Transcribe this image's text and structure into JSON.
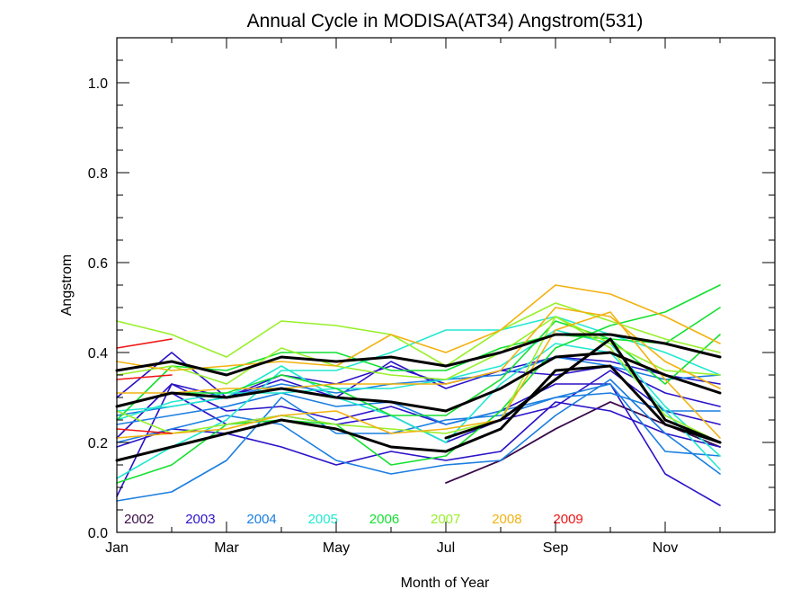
{
  "chart_data": {
    "type": "line",
    "title": "Annual Cycle in MODISA(AT34) Angstrom(531)",
    "xlabel": "Month of Year",
    "ylabel": "Angstrom",
    "xlim": [
      1,
      13
    ],
    "ylim": [
      0,
      1.1
    ],
    "x_ticks": [
      {
        "value": 1,
        "label": "Jan"
      },
      {
        "value": 3,
        "label": "Mar"
      },
      {
        "value": 5,
        "label": "May"
      },
      {
        "value": 7,
        "label": "Jul"
      },
      {
        "value": 9,
        "label": "Sep"
      },
      {
        "value": 11,
        "label": "Nov"
      }
    ],
    "y_ticks": [
      {
        "value": 0.0,
        "label": "0.0"
      },
      {
        "value": 0.2,
        "label": "0.2"
      },
      {
        "value": 0.4,
        "label": "0.4"
      },
      {
        "value": 0.6,
        "label": "0.6"
      },
      {
        "value": 0.8,
        "label": "0.8"
      },
      {
        "value": 1.0,
        "label": "1.0"
      }
    ],
    "legend_placement": "bottom-left",
    "grid": false,
    "legend": [
      {
        "label": "2002",
        "color": "#3a0a4a"
      },
      {
        "label": "2003",
        "color": "#2a12c8"
      },
      {
        "label": "2004",
        "color": "#1a7ee0"
      },
      {
        "label": "2005",
        "color": "#22e8d0"
      },
      {
        "label": "2006",
        "color": "#14e030"
      },
      {
        "label": "2007",
        "color": "#98f02a"
      },
      {
        "label": "2008",
        "color": "#f2b210"
      },
      {
        "label": "2009",
        "color": "#f01414"
      }
    ],
    "x": [
      1,
      2,
      3,
      4,
      5,
      6,
      7,
      8,
      9,
      10,
      11,
      12
    ],
    "series": [
      {
        "color": "#3a0a4a",
        "width": 1.6,
        "values": [
          null,
          null,
          null,
          null,
          null,
          null,
          0.11,
          0.16,
          0.23,
          0.29,
          0.24,
          0.19
        ]
      },
      {
        "color": "#3a0a4a",
        "width": 1.6,
        "values": [
          null,
          null,
          null,
          null,
          null,
          null,
          0.11,
          0.16,
          0.23,
          0.29,
          0.24,
          0.19
        ]
      },
      {
        "color": "#2a12c8",
        "width": 1.6,
        "values": [
          0.08,
          0.33,
          0.27,
          0.28,
          0.25,
          0.28,
          0.24,
          0.27,
          0.33,
          0.33,
          0.13,
          0.06
        ]
      },
      {
        "color": "#2a12c8",
        "width": 1.6,
        "values": [
          0.21,
          0.33,
          0.3,
          0.35,
          0.33,
          0.37,
          0.33,
          0.36,
          0.35,
          0.37,
          0.31,
          0.28
        ]
      },
      {
        "color": "#2a12c8",
        "width": 1.6,
        "values": [
          0.3,
          0.4,
          0.3,
          0.34,
          0.3,
          0.38,
          0.32,
          0.36,
          0.39,
          0.38,
          0.35,
          0.33
        ]
      },
      {
        "color": "#2a12c8",
        "width": 1.6,
        "values": [
          0.28,
          0.31,
          0.24,
          0.26,
          0.24,
          0.26,
          0.2,
          0.25,
          0.28,
          0.36,
          0.27,
          0.24
        ]
      },
      {
        "color": "#2a12c8",
        "width": 1.6,
        "values": [
          0.19,
          0.23,
          0.22,
          0.19,
          0.15,
          0.18,
          0.16,
          0.18,
          0.29,
          0.27,
          0.22,
          0.19
        ]
      },
      {
        "color": "#1a7ee0",
        "width": 1.6,
        "values": [
          0.07,
          0.09,
          0.16,
          0.3,
          0.22,
          0.22,
          0.25,
          0.26,
          0.3,
          0.33,
          0.18,
          0.17
        ]
      },
      {
        "color": "#1a7ee0",
        "width": 1.6,
        "values": [
          0.26,
          0.28,
          0.3,
          0.33,
          0.31,
          0.33,
          0.34,
          0.35,
          0.39,
          0.37,
          0.34,
          0.35
        ]
      },
      {
        "color": "#1a7ee0",
        "width": 1.6,
        "values": [
          0.2,
          0.23,
          0.26,
          0.24,
          0.16,
          0.13,
          0.15,
          0.16,
          0.26,
          0.34,
          0.22,
          0.13
        ]
      },
      {
        "color": "#1a7ee0",
        "width": 1.6,
        "values": [
          0.24,
          0.26,
          0.28,
          0.31,
          0.28,
          0.29,
          0.24,
          0.27,
          0.3,
          0.31,
          0.27,
          0.27
        ]
      },
      {
        "color": "#22e8d0",
        "width": 1.6,
        "values": [
          0.12,
          0.19,
          0.25,
          0.36,
          0.36,
          0.4,
          0.45,
          0.45,
          0.48,
          0.44,
          0.4,
          0.35
        ]
      },
      {
        "color": "#22e8d0",
        "width": 1.6,
        "values": [
          0.25,
          0.29,
          0.31,
          0.31,
          0.32,
          0.32,
          0.34,
          0.37,
          0.45,
          0.42,
          0.28,
          0.17
        ]
      },
      {
        "color": "#22e8d0",
        "width": 1.6,
        "values": [
          0.27,
          0.28,
          0.3,
          0.37,
          0.3,
          0.26,
          0.2,
          0.33,
          0.42,
          0.4,
          0.27,
          0.14
        ]
      },
      {
        "color": "#14e030",
        "width": 1.6,
        "values": [
          0.11,
          0.15,
          0.24,
          0.25,
          0.24,
          0.15,
          0.17,
          0.27,
          0.41,
          0.46,
          0.49,
          0.55
        ]
      },
      {
        "color": "#14e030",
        "width": 1.6,
        "values": [
          0.25,
          0.37,
          0.36,
          0.4,
          0.4,
          0.36,
          0.36,
          0.41,
          0.44,
          0.43,
          0.42,
          0.5
        ]
      },
      {
        "color": "#14e030",
        "width": 1.6,
        "values": [
          0.28,
          0.31,
          0.31,
          0.35,
          0.32,
          0.26,
          0.26,
          0.34,
          0.47,
          0.43,
          0.33,
          0.44
        ]
      },
      {
        "color": "#98f02a",
        "width": 1.6,
        "values": [
          0.47,
          0.44,
          0.39,
          0.47,
          0.46,
          0.44,
          0.37,
          0.45,
          0.51,
          0.47,
          0.43,
          0.4
        ]
      },
      {
        "color": "#98f02a",
        "width": 1.6,
        "values": [
          0.35,
          0.37,
          0.33,
          0.41,
          0.37,
          0.35,
          0.34,
          0.4,
          0.48,
          0.42,
          0.36,
          0.35
        ]
      },
      {
        "color": "#98f02a",
        "width": 1.6,
        "values": [
          0.27,
          0.22,
          0.24,
          0.26,
          0.24,
          0.23,
          0.22,
          0.25,
          0.48,
          0.41,
          0.26,
          0.2
        ]
      },
      {
        "color": "#f2b210",
        "width": 1.6,
        "values": [
          0.38,
          0.36,
          0.37,
          0.38,
          0.37,
          0.44,
          0.4,
          0.45,
          0.55,
          0.53,
          0.48,
          0.42
        ]
      },
      {
        "color": "#f2b210",
        "width": 1.6,
        "values": [
          0.31,
          0.31,
          0.32,
          0.32,
          0.33,
          0.33,
          0.33,
          0.36,
          0.5,
          0.48,
          0.38,
          0.32
        ]
      },
      {
        "color": "#f2b210",
        "width": 1.6,
        "values": [
          0.21,
          0.22,
          0.23,
          0.26,
          0.27,
          0.22,
          0.23,
          0.25,
          0.45,
          0.49,
          0.34,
          0.21
        ]
      },
      {
        "color": "#f01414",
        "width": 1.6,
        "values": [
          0.41,
          0.43,
          null,
          null,
          null,
          null,
          null,
          null,
          null,
          null,
          null,
          null
        ]
      },
      {
        "color": "#f01414",
        "width": 1.6,
        "values": [
          0.34,
          0.35,
          null,
          null,
          null,
          null,
          null,
          null,
          null,
          null,
          null,
          null
        ]
      },
      {
        "color": "#f01414",
        "width": 1.6,
        "values": [
          0.23,
          0.22,
          null,
          null,
          null,
          null,
          null,
          null,
          null,
          null,
          null,
          null
        ]
      },
      {
        "color": "#000000",
        "width": 3,
        "values": [
          0.36,
          0.38,
          0.35,
          0.39,
          0.38,
          0.39,
          0.37,
          0.4,
          0.44,
          0.44,
          0.42,
          0.39
        ]
      },
      {
        "color": "#000000",
        "width": 3,
        "values": [
          0.28,
          0.31,
          0.3,
          0.32,
          0.3,
          0.29,
          0.27,
          0.32,
          0.39,
          0.4,
          0.35,
          0.31
        ]
      },
      {
        "color": "#000000",
        "width": 3,
        "values": [
          0.16,
          0.19,
          0.22,
          0.25,
          0.23,
          0.19,
          0.18,
          0.23,
          0.36,
          0.37,
          0.24,
          0.2
        ]
      },
      {
        "color": "#000000",
        "width": 3,
        "values": [
          null,
          null,
          null,
          null,
          null,
          null,
          0.21,
          0.25,
          0.34,
          0.43,
          0.25,
          0.2
        ]
      }
    ]
  }
}
